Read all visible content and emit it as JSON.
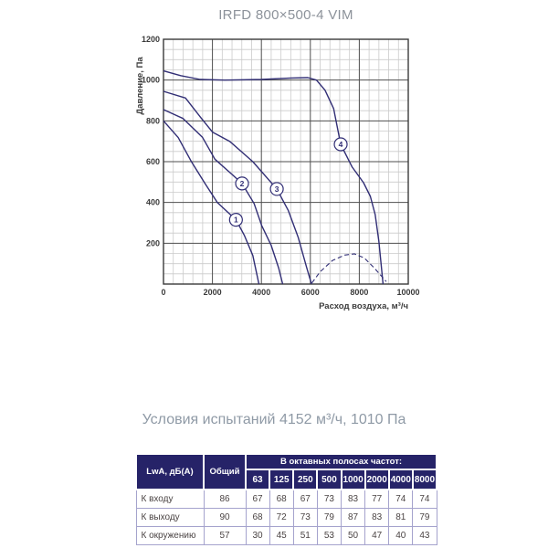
{
  "title": "IRFD 800×500-4 VIM",
  "conditions": "Условия испытаний 4152 м³/ч, 1010 Па",
  "colors": {
    "curve": "#312e75",
    "grid_major": "#4f4f4f",
    "grid_minor": "#cbcbcb",
    "frame": "#3a3a3a",
    "table_header_bg": "#262368",
    "table_border": "#a5a3cd",
    "table_text": "#4b4444",
    "title_text": "#8c929a",
    "conditions_text": "#8f9aa6"
  },
  "chart_data": {
    "type": "line",
    "title": "IRFD 800×500-4 VIM",
    "xlabel": "Расход воздуха, м³/ч",
    "ylabel": "Давление, Па",
    "xlim": [
      0,
      10000
    ],
    "ylim": [
      0,
      1200
    ],
    "x_major": 2000,
    "x_minor": 400,
    "y_major": 200,
    "y_minor": 50,
    "x_ticks": [
      0,
      2000,
      4000,
      6000,
      8000,
      10000
    ],
    "y_ticks": [
      200,
      400,
      600,
      800,
      1000,
      1200
    ],
    "grid": true,
    "colors": {
      "curve": "#312e75",
      "grid_major": "#4f4f4f",
      "grid_minor": "#cbcbcb",
      "frame": "#3a3a3a"
    },
    "series": [
      {
        "name": "1",
        "style": "solid",
        "label_at": [
          2960,
          315
        ],
        "points": [
          [
            0,
            800
          ],
          [
            600,
            718
          ],
          [
            1150,
            598
          ],
          [
            1700,
            492
          ],
          [
            2200,
            400
          ],
          [
            2960,
            315
          ],
          [
            3300,
            240
          ],
          [
            3650,
            140
          ],
          [
            3900,
            0
          ]
        ]
      },
      {
        "name": "2",
        "style": "solid",
        "label_at": [
          3210,
          493
        ],
        "points": [
          [
            0,
            855
          ],
          [
            800,
            812
          ],
          [
            1590,
            720
          ],
          [
            2100,
            612
          ],
          [
            2700,
            548
          ],
          [
            3210,
            493
          ],
          [
            3700,
            395
          ],
          [
            4010,
            287
          ],
          [
            4400,
            190
          ],
          [
            4700,
            80
          ],
          [
            4870,
            0
          ]
        ]
      },
      {
        "name": "3",
        "style": "solid",
        "label_at": [
          4630,
          466
        ],
        "points": [
          [
            0,
            945
          ],
          [
            900,
            912
          ],
          [
            1500,
            820
          ],
          [
            2000,
            745
          ],
          [
            2700,
            700
          ],
          [
            3650,
            600
          ],
          [
            4630,
            466
          ],
          [
            5100,
            360
          ],
          [
            5500,
            230
          ],
          [
            5850,
            80
          ],
          [
            6050,
            0
          ]
        ]
      },
      {
        "name": "4",
        "style": "solid",
        "label_at": [
          7240,
          685
        ],
        "points": [
          [
            0,
            1045
          ],
          [
            700,
            1022
          ],
          [
            1500,
            1003
          ],
          [
            2500,
            1000
          ],
          [
            4000,
            1003
          ],
          [
            5200,
            1010
          ],
          [
            5900,
            1012
          ],
          [
            6250,
            1000
          ],
          [
            6600,
            950
          ],
          [
            6950,
            860
          ],
          [
            7240,
            685
          ],
          [
            7700,
            575
          ],
          [
            8170,
            497
          ],
          [
            8450,
            430
          ],
          [
            8650,
            340
          ],
          [
            8800,
            210
          ],
          [
            8920,
            60
          ],
          [
            8970,
            0
          ]
        ]
      },
      {
        "name": "dashed",
        "style": "dashed",
        "label_at": null,
        "points": [
          [
            6060,
            5
          ],
          [
            6400,
            60
          ],
          [
            6900,
            115
          ],
          [
            7400,
            142
          ],
          [
            7800,
            148
          ],
          [
            8200,
            128
          ],
          [
            8600,
            80
          ],
          [
            8900,
            40
          ],
          [
            9100,
            12
          ]
        ]
      }
    ]
  },
  "table": {
    "col1_header": "LwA, дБ(А)",
    "col2_header": "Общий",
    "octave_header": "В октавных полосах частот:",
    "freq_labels": [
      "63",
      "125",
      "250",
      "500",
      "1000",
      "2000",
      "4000",
      "8000"
    ],
    "rows": [
      {
        "label": "К входу",
        "total": "86",
        "values": [
          "67",
          "68",
          "67",
          "73",
          "83",
          "77",
          "74",
          "74"
        ]
      },
      {
        "label": "К выходу",
        "total": "90",
        "values": [
          "68",
          "72",
          "73",
          "79",
          "87",
          "83",
          "81",
          "79"
        ]
      },
      {
        "label": "К окружению",
        "total": "57",
        "values": [
          "30",
          "45",
          "51",
          "53",
          "50",
          "47",
          "40",
          "43"
        ]
      }
    ]
  }
}
